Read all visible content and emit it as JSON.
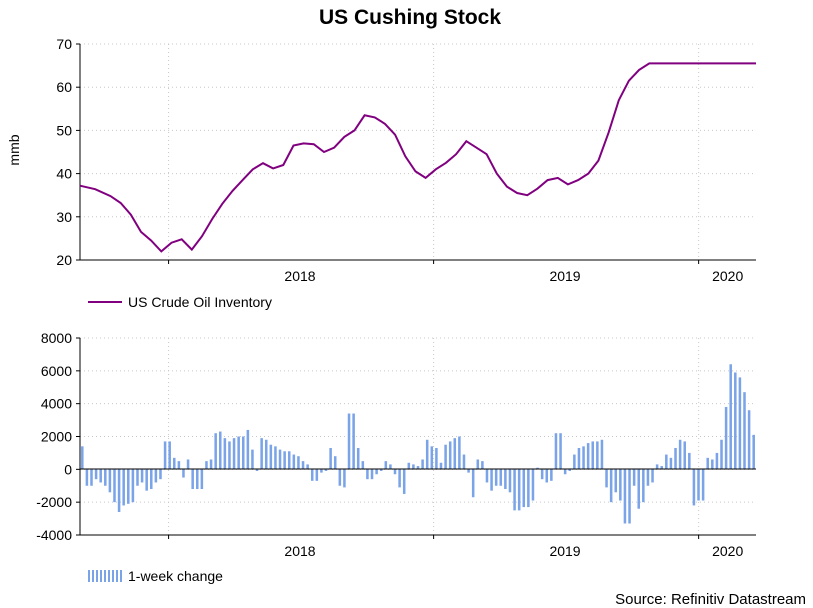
{
  "title": "US Cushing Stock",
  "source": "Source: Refinitiv Datastream",
  "colors": {
    "line": "#800080",
    "bar": "#7ba3e8",
    "grid": "#c8c8c8"
  },
  "chart_data": [
    {
      "type": "line",
      "ylabel": "mmb",
      "ylim": [
        20,
        70
      ],
      "yticks": [
        20,
        30,
        40,
        50,
        60,
        70
      ],
      "xlim": [
        "2017-09-01",
        "2020-03-20"
      ],
      "xticklabels": [
        "2018",
        "2019",
        "2020"
      ],
      "grid": true,
      "legend": "bottom-left",
      "series": [
        {
          "name": "US Crude Oil Inventory",
          "x": [
            "2017-09-01",
            "2017-09-22",
            "2017-10-13",
            "2017-10-27",
            "2017-11-10",
            "2017-11-24",
            "2017-12-08",
            "2017-12-22",
            "2018-01-05",
            "2018-01-19",
            "2018-02-02",
            "2018-02-16",
            "2018-03-02",
            "2018-03-16",
            "2018-03-30",
            "2018-04-13",
            "2018-04-27",
            "2018-05-11",
            "2018-05-25",
            "2018-06-08",
            "2018-06-22",
            "2018-07-06",
            "2018-07-20",
            "2018-08-03",
            "2018-08-17",
            "2018-08-31",
            "2018-09-14",
            "2018-09-28",
            "2018-10-12",
            "2018-10-26",
            "2018-11-09",
            "2018-11-23",
            "2018-12-07",
            "2018-12-21",
            "2019-01-04",
            "2019-01-18",
            "2019-02-01",
            "2019-02-15",
            "2019-03-01",
            "2019-03-15",
            "2019-03-29",
            "2019-04-12",
            "2019-04-26",
            "2019-05-10",
            "2019-05-24",
            "2019-06-07",
            "2019-06-21",
            "2019-07-05",
            "2019-07-19",
            "2019-08-02",
            "2019-08-16",
            "2019-08-30",
            "2019-09-13",
            "2019-09-27",
            "2019-10-11",
            "2019-10-25",
            "2019-11-08",
            "2019-11-22",
            "2019-12-06",
            "2019-12-20",
            "2020-01-03",
            "2020-01-17",
            "2020-01-31",
            "2020-02-07",
            "2020-02-14",
            "2020-02-21",
            "2020-02-28",
            "2020-03-06",
            "2020-03-13",
            "2020-03-20"
          ],
          "values": [
            37.2,
            36.4,
            34.8,
            33.2,
            30.5,
            26.5,
            24.5,
            22.0,
            24.0,
            24.8,
            22.4,
            25.5,
            29.5,
            33.0,
            36.0,
            38.5,
            41.0,
            42.4,
            41.2,
            42.0,
            46.5,
            47.0,
            46.8,
            45.0,
            46.0,
            48.5,
            50.0,
            53.5,
            53.0,
            51.5,
            49.0,
            44.0,
            40.5,
            39.0,
            41.0,
            42.5,
            44.5,
            47.5,
            46.0,
            44.5,
            40.0,
            37.0,
            35.5,
            35.0,
            36.5,
            38.5,
            39.0,
            37.5,
            38.5,
            40.0,
            43.0,
            49.5,
            57.0,
            61.5,
            64.0,
            65.5,
            65.5,
            65.5,
            65.5,
            65.5,
            65.5,
            65.5,
            65.5,
            65.5,
            65.5,
            65.5,
            65.5,
            65.5,
            65.5,
            65.5
          ]
        }
      ]
    },
    {
      "type": "bar",
      "ylim": [
        -4000,
        8000
      ],
      "yticks": [
        -4000,
        -2000,
        0,
        2000,
        4000,
        6000,
        8000
      ],
      "xlim": [
        "2017-09-01",
        "2020-03-20"
      ],
      "xticklabels": [
        "2018",
        "2019",
        "2020"
      ],
      "grid": true,
      "legend": "bottom-left",
      "series": [
        {
          "name": "1-week change",
          "values": [
            1400,
            -1000,
            -1000,
            -600,
            -800,
            -1000,
            -1400,
            -2000,
            -2600,
            -2200,
            -2100,
            -2000,
            -1000,
            -800,
            -1300,
            -1200,
            -800,
            -600,
            1700,
            1700,
            700,
            500,
            -500,
            600,
            -1200,
            -1200,
            -1200,
            500,
            600,
            2200,
            2300,
            1900,
            1700,
            1900,
            2000,
            2000,
            2400,
            1200,
            -100,
            1900,
            1800,
            1500,
            1400,
            1200,
            1100,
            1100,
            900,
            800,
            500,
            300,
            -700,
            -700,
            -200,
            -100,
            1300,
            800,
            -1000,
            -1100,
            3400,
            3400,
            1300,
            500,
            -600,
            -600,
            -300,
            -100,
            500,
            300,
            -300,
            -1100,
            -1500,
            400,
            300,
            200,
            600,
            1800,
            1400,
            1300,
            400,
            1500,
            1700,
            1900,
            2000,
            900,
            -200,
            -1700,
            600,
            500,
            -800,
            -1300,
            -1000,
            -1000,
            -1200,
            -1400,
            -2500,
            -2500,
            -2300,
            -2300,
            -1900,
            100,
            -600,
            -800,
            -700,
            2200,
            2200,
            -300,
            -100,
            900,
            1300,
            1400,
            1600,
            1700,
            1700,
            1800,
            -1100,
            -2000,
            -1400,
            -1900,
            -3300,
            -3300,
            -1000,
            -2400,
            -2000,
            -1000,
            -800,
            300,
            200,
            900,
            700,
            1300,
            1800,
            1700,
            1000,
            -2200,
            -1900,
            -1900,
            700,
            600,
            1000,
            1800,
            3800,
            6400,
            5900,
            5600,
            4700,
            3600,
            2100
          ]
        }
      ]
    }
  ]
}
